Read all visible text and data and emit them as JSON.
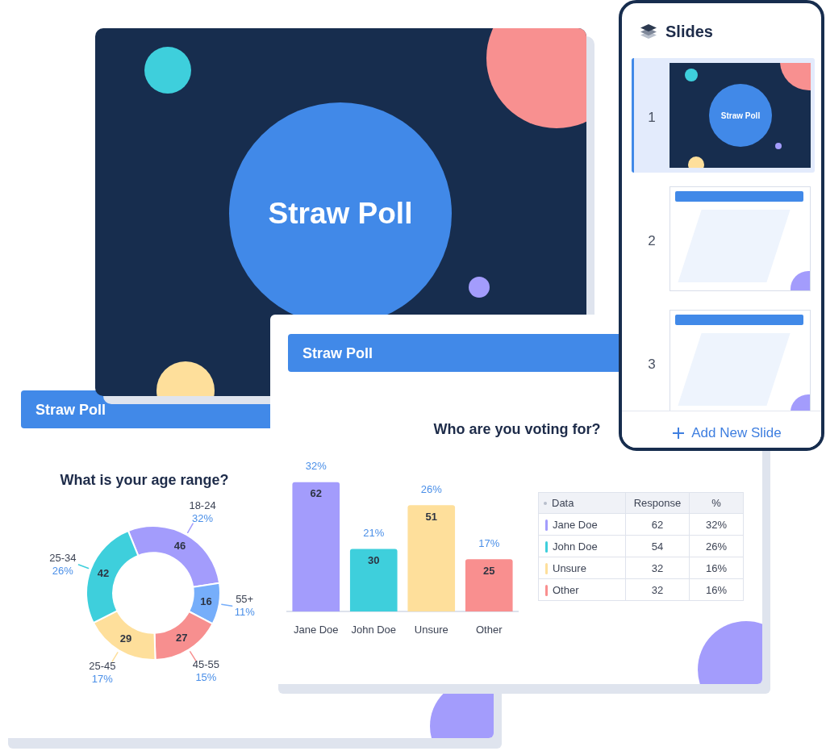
{
  "chart_data": [
    {
      "type": "other",
      "title": "Straw Poll"
    },
    {
      "type": "other",
      "title": "Slides",
      "categories": [
        "1",
        "2",
        "3"
      ],
      "annotations": [
        "Straw Poll",
        "Add New Slide"
      ]
    },
    {
      "type": "bar",
      "title": "Straw Poll",
      "subtitle": "Who are you voting for?",
      "categories": [
        "Jane Doe",
        "John Doe",
        "Unsure",
        "Other"
      ],
      "values": [
        62,
        30,
        51,
        25
      ],
      "colors": [
        "#a39cfc",
        "#3ecfdc",
        "#fedf9b",
        "#f98f8f"
      ],
      "data_labels": true,
      "annotations": [
        {
          "text": "32%",
          "x": "Jane Doe",
          "y": 62
        },
        {
          "text": "21%",
          "x": "John Doe",
          "y": 30
        },
        {
          "text": "26%",
          "x": "Unsure",
          "y": 51
        },
        {
          "text": "17%",
          "x": "Other",
          "y": 25
        }
      ]
    },
    {
      "type": "other",
      "ylabel": "Data",
      "categories": [
        "Jane Doe",
        "John Doe",
        "Unsure",
        "Other"
      ],
      "colors": [
        "#a39cfc",
        "#3ecfdc",
        "#fedf9b",
        "#f98f8f"
      ],
      "data_labels": true,
      "series": [
        {
          "name": "Response",
          "values": [
            62,
            54,
            32,
            32
          ]
        },
        {
          "name": "%",
          "values": [
            32,
            26,
            16,
            16
          ],
          "value_labels": [
            "32%",
            "26%",
            "16%",
            "16%"
          ]
        }
      ]
    },
    {
      "type": "donut",
      "title": "Straw Poll",
      "subtitle": "What is your age range?",
      "categories": [
        "18-24",
        "55+",
        "45-55",
        "25-45",
        "25-34"
      ],
      "values": [
        46,
        16,
        27,
        29,
        42
      ],
      "colors": [
        "#a39cfc",
        "#76aefa",
        "#f78f8f",
        "#fedf9b",
        "#3ecfdc"
      ],
      "data_labels": true,
      "annotations": [
        {
          "text": "32%",
          "x": "18-24"
        },
        {
          "text": "11%",
          "x": "55+"
        },
        {
          "text": "15%",
          "x": "45-55"
        },
        {
          "text": "17%",
          "x": "25-45"
        },
        {
          "text": "26%",
          "x": "25-34"
        }
      ]
    }
  ]
}
